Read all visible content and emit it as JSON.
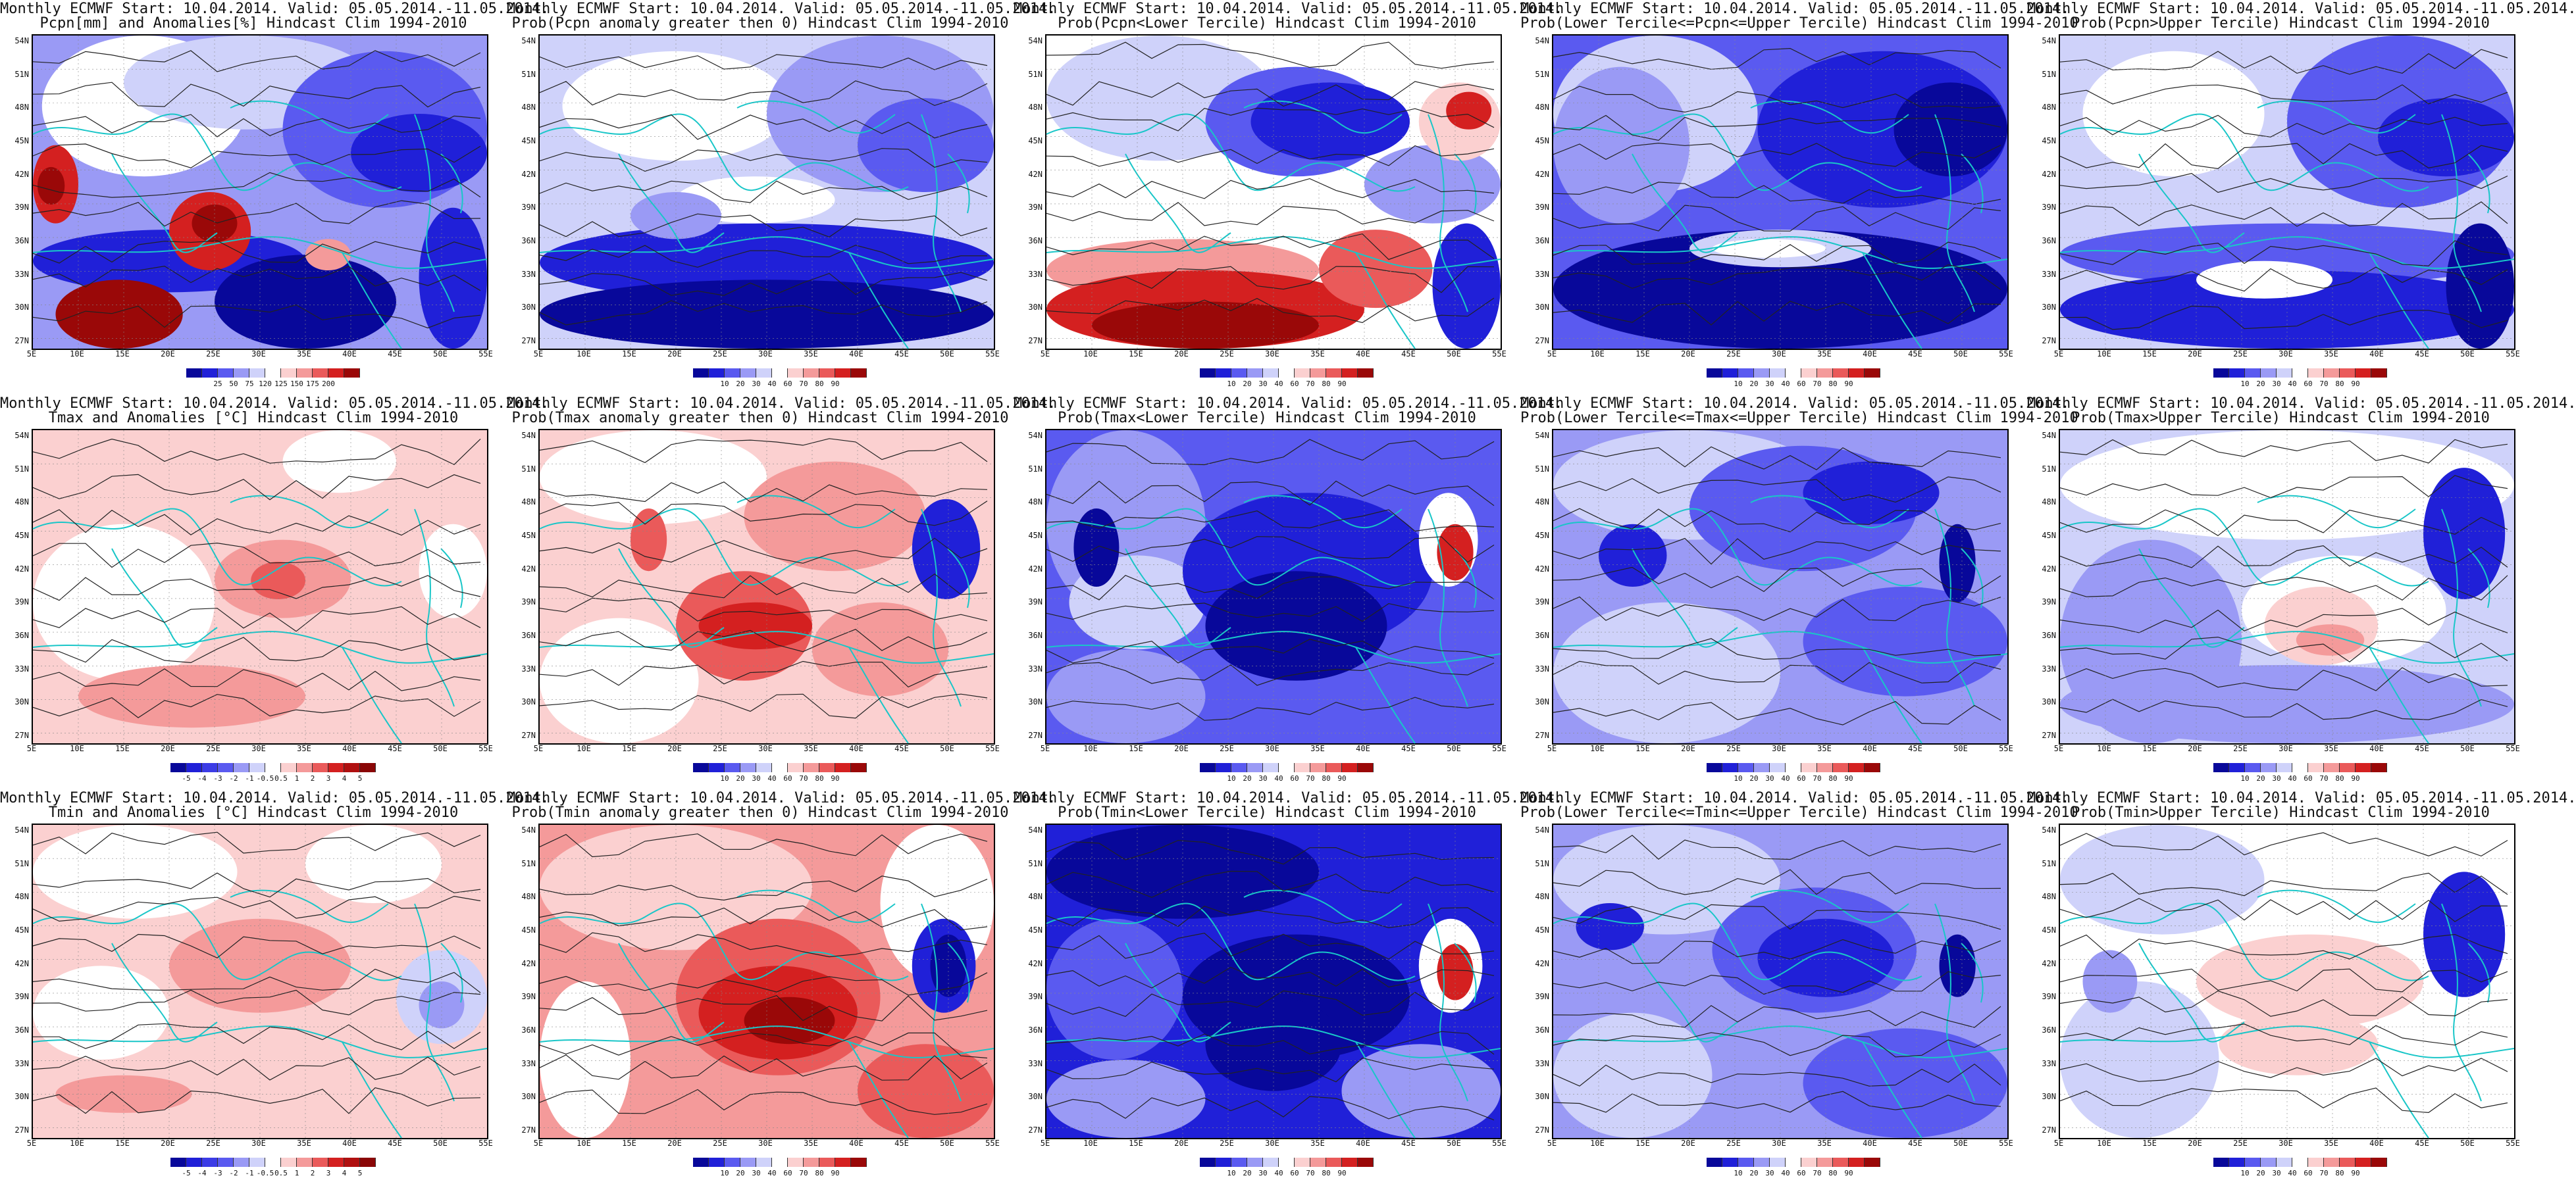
{
  "titles": [
    [
      "Monthly ECMWF Start: 10.04.2014. Valid: 05.05.2014.-11.05.2014.",
      "Pcpn[mm] and Anomalies[%] Hindcast Clim 1994-2010"
    ],
    [
      "Monthly ECMWF Start: 10.04.2014. Valid: 05.05.2014.-11.05.2014.",
      "Prob(Pcpn anomaly greater then 0) Hindcast Clim 1994-2010"
    ],
    [
      "Monthly ECMWF Start: 10.04.2014. Valid: 05.05.2014.-11.05.2014.",
      "Prob(Pcpn<Lower Tercile) Hindcast Clim 1994-2010"
    ],
    [
      "Monthly ECMWF Start: 10.04.2014. Valid: 05.05.2014.-11.05.2014.",
      "Prob(Lower Tercile<=Pcpn<=Upper Tercile) Hindcast Clim 1994-2010"
    ],
    [
      "Monthly ECMWF Start: 10.04.2014. Valid: 05.05.2014.-11.05.2014.",
      "Prob(Pcpn>Upper Tercile) Hindcast Clim 1994-2010"
    ],
    [
      "Monthly ECMWF Start: 10.04.2014. Valid: 05.05.2014.-11.05.2014.",
      "Tmax and Anomalies [°C] Hindcast Clim 1994-2010"
    ],
    [
      "Monthly ECMWF Start: 10.04.2014. Valid: 05.05.2014.-11.05.2014.",
      "Prob(Tmax anomaly greater then 0) Hindcast Clim 1994-2010"
    ],
    [
      "Monthly ECMWF Start: 10.04.2014. Valid: 05.05.2014.-11.05.2014.",
      "Prob(Tmax<Lower Tercile) Hindcast Clim 1994-2010"
    ],
    [
      "Monthly ECMWF Start: 10.04.2014. Valid: 05.05.2014.-11.05.2014.",
      "Prob(Lower Tercile<=Tmax<=Upper Tercile) Hindcast Clim 1994-2010"
    ],
    [
      "Monthly ECMWF Start: 10.04.2014. Valid: 05.05.2014.-11.05.2014.",
      "Prob(Tmax>Upper Tercile) Hindcast Clim 1994-2010"
    ],
    [
      "Monthly ECMWF Start: 10.04.2014. Valid: 05.05.2014.-11.05.2014.",
      "Tmin and Anomalies [°C] Hindcast Clim 1994-2010"
    ],
    [
      "Monthly ECMWF Start: 10.04.2014. Valid: 05.05.2014.-11.05.2014.",
      "Prob(Tmin anomaly greater then 0) Hindcast Clim 1994-2010"
    ],
    [
      "Monthly ECMWF Start: 10.04.2014. Valid: 05.05.2014.-11.05.2014.",
      "Prob(Tmin<Lower Tercile) Hindcast Clim 1994-2010"
    ],
    [
      "Monthly ECMWF Start: 10.04.2014. Valid: 05.05.2014.-11.05.2014.",
      "Prob(Lower Tercile<=Tmin<=Upper Tercile) Hindcast Clim 1994-2010"
    ],
    [
      "Monthly ECMWF Start: 10.04.2014. Valid: 05.05.2014.-11.05.2014.",
      "Prob(Tmin>Upper Tercile) Hindcast Clim 1994-2010"
    ]
  ],
  "lat_labels": [
    "54N",
    "51N",
    "48N",
    "45N",
    "42N",
    "39N",
    "36N",
    "33N",
    "30N",
    "27N"
  ],
  "lon_labels": [
    "5E",
    "10E",
    "15E",
    "20E",
    "25E",
    "30E",
    "35E",
    "40E",
    "45E",
    "50E",
    "55E"
  ],
  "colorbars": {
    "pcpn_anom": {
      "labels": [
        "25",
        "50",
        "75",
        "120",
        "125",
        "150",
        "175",
        "200"
      ],
      "colors": [
        "#08089a",
        "#2020d8",
        "#5a5af0",
        "#9a9af5",
        "#cfd2fa",
        "#ffffff",
        "#fbd0d0",
        "#f49a9a",
        "#ea5a5a",
        "#d42020",
        "#9a0808"
      ]
    },
    "prob": {
      "labels": [
        "10",
        "20",
        "30",
        "40",
        "60",
        "70",
        "80",
        "90"
      ],
      "colors": [
        "#08089a",
        "#2020d8",
        "#5a5af0",
        "#9a9af5",
        "#cfd2fa",
        "#ffffff",
        "#fbd0d0",
        "#f49a9a",
        "#ea5a5a",
        "#d42020",
        "#9a0808"
      ]
    },
    "temp_anom": {
      "labels": [
        "-5",
        "-4",
        "-3",
        "-2",
        "-1",
        "-0.5",
        "0.5",
        "1",
        "2",
        "3",
        "4",
        "5"
      ],
      "colors": [
        "#08089a",
        "#2020d8",
        "#3c3ce6",
        "#5a5af0",
        "#9a9af5",
        "#cfd2fa",
        "#ffffff",
        "#fbd0d0",
        "#f49a9a",
        "#ea5a5a",
        "#d42020",
        "#b01010",
        "#8a0606"
      ]
    }
  },
  "panels": [
    {
      "id": "r1c1",
      "bar": "pcpn_anom",
      "regions": [
        [
          "#9a9af5",
          0.0,
          0.0,
          1.0,
          1.0
        ],
        [
          "#ffffff",
          0.02,
          0.0,
          0.45,
          0.45
        ],
        [
          "#cfd2fa",
          0.2,
          0.0,
          0.55,
          0.3
        ],
        [
          "#5a5af0",
          0.55,
          0.05,
          0.45,
          0.5
        ],
        [
          "#2020d8",
          0.7,
          0.25,
          0.3,
          0.25
        ],
        [
          "#d42020",
          0.0,
          0.35,
          0.1,
          0.25
        ],
        [
          "#9a0808",
          0.01,
          0.42,
          0.06,
          0.12
        ],
        [
          "#2020d8",
          0.0,
          0.62,
          0.6,
          0.2
        ],
        [
          "#08089a",
          0.4,
          0.7,
          0.4,
          0.3
        ],
        [
          "#9a0808",
          0.05,
          0.78,
          0.28,
          0.22
        ],
        [
          "#d42020",
          0.3,
          0.5,
          0.18,
          0.25
        ],
        [
          "#9a0808",
          0.35,
          0.54,
          0.1,
          0.12
        ],
        [
          "#f49a9a",
          0.6,
          0.65,
          0.1,
          0.1
        ],
        [
          "#2020d8",
          0.85,
          0.55,
          0.15,
          0.45
        ]
      ]
    },
    {
      "id": "r1c2",
      "bar": "prob",
      "regions": [
        [
          "#cfd2fa",
          0.0,
          0.0,
          1.0,
          1.0
        ],
        [
          "#ffffff",
          0.05,
          0.05,
          0.5,
          0.35
        ],
        [
          "#9a9af5",
          0.5,
          0.0,
          0.5,
          0.5
        ],
        [
          "#5a5af0",
          0.7,
          0.2,
          0.3,
          0.3
        ],
        [
          "#2020d8",
          0.0,
          0.6,
          1.0,
          0.25
        ],
        [
          "#08089a",
          0.0,
          0.78,
          1.0,
          0.22
        ],
        [
          "#ffffff",
          0.3,
          0.45,
          0.35,
          0.15
        ],
        [
          "#9a9af5",
          0.2,
          0.5,
          0.2,
          0.15
        ]
      ]
    },
    {
      "id": "r1c3",
      "bar": "prob",
      "regions": [
        [
          "#ffffff",
          0.0,
          0.0,
          1.0,
          1.0
        ],
        [
          "#cfd2fa",
          0.0,
          0.0,
          0.5,
          0.4
        ],
        [
          "#5a5af0",
          0.35,
          0.1,
          0.4,
          0.35
        ],
        [
          "#2020d8",
          0.45,
          0.15,
          0.35,
          0.25
        ],
        [
          "#9a9af5",
          0.7,
          0.35,
          0.3,
          0.25
        ],
        [
          "#fbd0d0",
          0.82,
          0.15,
          0.18,
          0.25
        ],
        [
          "#d42020",
          0.88,
          0.18,
          0.1,
          0.12
        ],
        [
          "#f49a9a",
          0.0,
          0.65,
          0.6,
          0.2
        ],
        [
          "#d42020",
          0.0,
          0.75,
          0.7,
          0.25
        ],
        [
          "#9a0808",
          0.1,
          0.85,
          0.5,
          0.15
        ],
        [
          "#ea5a5a",
          0.6,
          0.62,
          0.25,
          0.25
        ],
        [
          "#2020d8",
          0.85,
          0.6,
          0.15,
          0.4
        ]
      ]
    },
    {
      "id": "r1c4",
      "bar": "prob",
      "regions": [
        [
          "#5a5af0",
          0.0,
          0.0,
          1.0,
          1.0
        ],
        [
          "#cfd2fa",
          0.0,
          0.0,
          0.45,
          0.5
        ],
        [
          "#9a9af5",
          0.0,
          0.1,
          0.3,
          0.5
        ],
        [
          "#2020d8",
          0.45,
          0.05,
          0.55,
          0.5
        ],
        [
          "#08089a",
          0.0,
          0.62,
          1.0,
          0.38
        ],
        [
          "#cfd2fa",
          0.3,
          0.62,
          0.4,
          0.12
        ],
        [
          "#ffffff",
          0.35,
          0.65,
          0.25,
          0.06
        ],
        [
          "#08089a",
          0.75,
          0.15,
          0.25,
          0.3
        ]
      ]
    },
    {
      "id": "r1c5",
      "bar": "prob",
      "regions": [
        [
          "#cfd2fa",
          0.0,
          0.0,
          1.0,
          1.0
        ],
        [
          "#ffffff",
          0.05,
          0.05,
          0.4,
          0.4
        ],
        [
          "#5a5af0",
          0.5,
          0.0,
          0.5,
          0.55
        ],
        [
          "#2020d8",
          0.7,
          0.2,
          0.3,
          0.25
        ],
        [
          "#5a5af0",
          0.0,
          0.6,
          1.0,
          0.2
        ],
        [
          "#2020d8",
          0.0,
          0.75,
          1.0,
          0.25
        ],
        [
          "#ffffff",
          0.3,
          0.72,
          0.3,
          0.12
        ],
        [
          "#08089a",
          0.85,
          0.6,
          0.15,
          0.4
        ]
      ]
    },
    {
      "id": "r2c1",
      "bar": "temp_anom",
      "regions": [
        [
          "#fbd0d0",
          0.0,
          0.0,
          1.0,
          1.0
        ],
        [
          "#ffffff",
          0.0,
          0.3,
          0.4,
          0.5
        ],
        [
          "#ffffff",
          0.55,
          0.0,
          0.25,
          0.2
        ],
        [
          "#f49a9a",
          0.4,
          0.35,
          0.3,
          0.25
        ],
        [
          "#ea5a5a",
          0.48,
          0.42,
          0.12,
          0.12
        ],
        [
          "#f49a9a",
          0.1,
          0.75,
          0.5,
          0.2
        ],
        [
          "#fbd0d0",
          0.7,
          0.2,
          0.3,
          0.5
        ],
        [
          "#ffffff",
          0.85,
          0.3,
          0.15,
          0.3
        ]
      ]
    },
    {
      "id": "r2c2",
      "bar": "prob",
      "regions": [
        [
          "#fbd0d0",
          0.0,
          0.0,
          1.0,
          1.0
        ],
        [
          "#ffffff",
          0.0,
          0.0,
          0.5,
          0.3
        ],
        [
          "#f49a9a",
          0.45,
          0.1,
          0.4,
          0.35
        ],
        [
          "#ffffff",
          0.0,
          0.6,
          0.35,
          0.4
        ],
        [
          "#ea5a5a",
          0.3,
          0.45,
          0.3,
          0.35
        ],
        [
          "#d42020",
          0.35,
          0.55,
          0.25,
          0.15
        ],
        [
          "#f49a9a",
          0.6,
          0.55,
          0.3,
          0.3
        ],
        [
          "#08089a",
          0.85,
          0.25,
          0.1,
          0.25
        ],
        [
          "#2020d8",
          0.82,
          0.22,
          0.15,
          0.32
        ],
        [
          "#ea5a5a",
          0.2,
          0.25,
          0.08,
          0.2
        ]
      ]
    },
    {
      "id": "r2c3",
      "bar": "prob",
      "regions": [
        [
          "#5a5af0",
          0.0,
          0.0,
          1.0,
          1.0
        ],
        [
          "#9a9af5",
          0.0,
          0.0,
          0.35,
          0.6
        ],
        [
          "#cfd2fa",
          0.05,
          0.4,
          0.3,
          0.3
        ],
        [
          "#2020d8",
          0.3,
          0.2,
          0.55,
          0.5
        ],
        [
          "#08089a",
          0.35,
          0.45,
          0.4,
          0.35
        ],
        [
          "#9a9af5",
          0.0,
          0.7,
          0.35,
          0.3
        ],
        [
          "#ffffff",
          0.82,
          0.2,
          0.13,
          0.3
        ],
        [
          "#d42020",
          0.86,
          0.3,
          0.08,
          0.18
        ],
        [
          "#08089a",
          0.06,
          0.25,
          0.1,
          0.25
        ]
      ]
    },
    {
      "id": "r2c4",
      "bar": "prob",
      "regions": [
        [
          "#9a9af5",
          0.0,
          0.0,
          1.0,
          1.0
        ],
        [
          "#cfd2fa",
          0.0,
          0.0,
          0.6,
          0.35
        ],
        [
          "#5a5af0",
          0.3,
          0.05,
          0.5,
          0.4
        ],
        [
          "#2020d8",
          0.55,
          0.1,
          0.3,
          0.2
        ],
        [
          "#cfd2fa",
          0.0,
          0.55,
          0.5,
          0.45
        ],
        [
          "#5a5af0",
          0.55,
          0.5,
          0.45,
          0.35
        ],
        [
          "#08089a",
          0.85,
          0.3,
          0.08,
          0.25
        ],
        [
          "#2020d8",
          0.1,
          0.3,
          0.15,
          0.2
        ]
      ]
    },
    {
      "id": "r2c5",
      "bar": "prob",
      "regions": [
        [
          "#cfd2fa",
          0.0,
          0.0,
          1.0,
          1.0
        ],
        [
          "#ffffff",
          0.0,
          0.0,
          1.0,
          0.35
        ],
        [
          "#9a9af5",
          0.0,
          0.35,
          0.4,
          0.65
        ],
        [
          "#ffffff",
          0.4,
          0.4,
          0.45,
          0.35
        ],
        [
          "#fbd0d0",
          0.45,
          0.5,
          0.25,
          0.25
        ],
        [
          "#f49a9a",
          0.52,
          0.62,
          0.15,
          0.1
        ],
        [
          "#08089a",
          0.84,
          0.15,
          0.12,
          0.35
        ],
        [
          "#2020d8",
          0.8,
          0.12,
          0.18,
          0.42
        ],
        [
          "#9a9af5",
          0.0,
          0.75,
          1.0,
          0.25
        ]
      ]
    },
    {
      "id": "r3c1",
      "bar": "temp_anom",
      "regions": [
        [
          "#fbd0d0",
          0.0,
          0.0,
          1.0,
          1.0
        ],
        [
          "#ffffff",
          0.0,
          0.0,
          0.45,
          0.3
        ],
        [
          "#ffffff",
          0.0,
          0.45,
          0.3,
          0.3
        ],
        [
          "#f49a9a",
          0.3,
          0.3,
          0.4,
          0.3
        ],
        [
          "#cfd2fa",
          0.8,
          0.4,
          0.2,
          0.3
        ],
        [
          "#9a9af5",
          0.85,
          0.5,
          0.1,
          0.15
        ],
        [
          "#fbd0d0",
          0.0,
          0.75,
          1.0,
          0.25
        ],
        [
          "#f49a9a",
          0.05,
          0.8,
          0.3,
          0.12
        ],
        [
          "#ffffff",
          0.6,
          0.0,
          0.3,
          0.25
        ]
      ]
    },
    {
      "id": "r3c2",
      "bar": "prob",
      "regions": [
        [
          "#f49a9a",
          0.0,
          0.0,
          1.0,
          1.0
        ],
        [
          "#fbd0d0",
          0.0,
          0.0,
          0.6,
          0.4
        ],
        [
          "#ffffff",
          0.0,
          0.5,
          0.2,
          0.5
        ],
        [
          "#ea5a5a",
          0.3,
          0.3,
          0.45,
          0.5
        ],
        [
          "#d42020",
          0.35,
          0.45,
          0.35,
          0.3
        ],
        [
          "#9a0808",
          0.45,
          0.55,
          0.2,
          0.15
        ],
        [
          "#ffffff",
          0.75,
          0.0,
          0.25,
          0.5
        ],
        [
          "#2020d8",
          0.82,
          0.3,
          0.14,
          0.3
        ],
        [
          "#08089a",
          0.86,
          0.35,
          0.08,
          0.2
        ],
        [
          "#ea5a5a",
          0.7,
          0.7,
          0.3,
          0.3
        ]
      ]
    },
    {
      "id": "r3c3",
      "bar": "prob",
      "regions": [
        [
          "#2020d8",
          0.0,
          0.0,
          1.0,
          1.0
        ],
        [
          "#08089a",
          0.0,
          0.0,
          0.6,
          0.3
        ],
        [
          "#5a5af0",
          0.0,
          0.3,
          0.3,
          0.45
        ],
        [
          "#08089a",
          0.3,
          0.35,
          0.5,
          0.4
        ],
        [
          "#08089a",
          0.35,
          0.55,
          0.3,
          0.3
        ],
        [
          "#9a9af5",
          0.0,
          0.75,
          0.35,
          0.25
        ],
        [
          "#ffffff",
          0.82,
          0.3,
          0.14,
          0.3
        ],
        [
          "#d42020",
          0.86,
          0.38,
          0.08,
          0.18
        ],
        [
          "#9a9af5",
          0.65,
          0.7,
          0.35,
          0.3
        ]
      ]
    },
    {
      "id": "r3c4",
      "bar": "prob",
      "regions": [
        [
          "#9a9af5",
          0.0,
          0.0,
          1.0,
          1.0
        ],
        [
          "#cfd2fa",
          0.0,
          0.0,
          0.5,
          0.35
        ],
        [
          "#5a5af0",
          0.35,
          0.2,
          0.45,
          0.4
        ],
        [
          "#2020d8",
          0.45,
          0.3,
          0.3,
          0.25
        ],
        [
          "#cfd2fa",
          0.0,
          0.6,
          0.35,
          0.4
        ],
        [
          "#08089a",
          0.85,
          0.35,
          0.08,
          0.2
        ],
        [
          "#5a5af0",
          0.55,
          0.65,
          0.45,
          0.35
        ],
        [
          "#2020d8",
          0.05,
          0.25,
          0.15,
          0.15
        ]
      ]
    },
    {
      "id": "r3c5",
      "bar": "prob",
      "regions": [
        [
          "#ffffff",
          0.0,
          0.0,
          1.0,
          1.0
        ],
        [
          "#cfd2fa",
          0.0,
          0.0,
          0.45,
          0.35
        ],
        [
          "#cfd2fa",
          0.0,
          0.5,
          0.35,
          0.5
        ],
        [
          "#fbd0d0",
          0.3,
          0.35,
          0.5,
          0.3
        ],
        [
          "#fbd0d0",
          0.35,
          0.6,
          0.35,
          0.2
        ],
        [
          "#08089a",
          0.83,
          0.2,
          0.12,
          0.3
        ],
        [
          "#2020d8",
          0.8,
          0.15,
          0.18,
          0.4
        ],
        [
          "#9a9af5",
          0.05,
          0.4,
          0.12,
          0.2
        ]
      ]
    }
  ]
}
